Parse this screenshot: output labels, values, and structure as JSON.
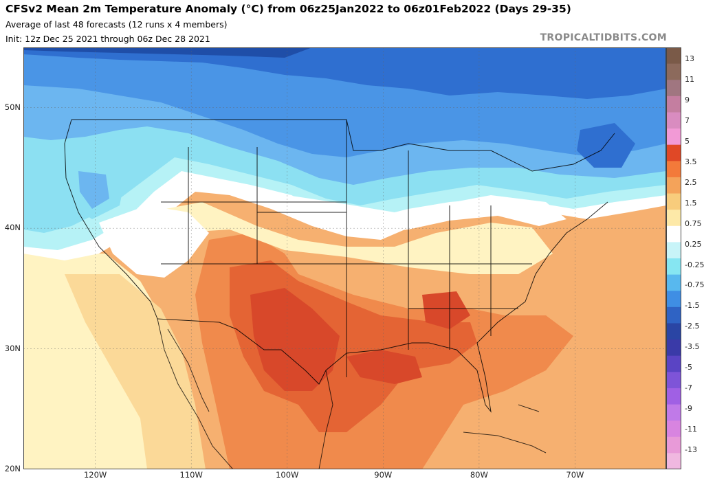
{
  "header": {
    "title": "CFSv2 Mean 2m Temperature Anomaly (°C) from 06z25Jan2022 to 06z01Feb2022 (Days 29-35)",
    "subtitle_1": "Average of last 48 forecasts (12 runs x 4 members)",
    "subtitle_2": "Init: 12z Dec 25 2021 through 06z Dec 28 2021",
    "brand": "TROPICALTIDBITS.COM"
  },
  "axes": {
    "latitudes": [
      {
        "value": 50,
        "label": "50N"
      },
      {
        "value": 40,
        "label": "40N"
      },
      {
        "value": 30,
        "label": "30N"
      },
      {
        "value": 20,
        "label": "20N"
      }
    ],
    "longitudes": [
      {
        "value": -120,
        "label": "120W"
      },
      {
        "value": -110,
        "label": "110W"
      },
      {
        "value": -100,
        "label": "100W"
      },
      {
        "value": -90,
        "label": "90W"
      },
      {
        "value": -80,
        "label": "80W"
      },
      {
        "value": -70,
        "label": "70W"
      }
    ]
  },
  "colorbar": {
    "labels": [
      "13",
      "11",
      "9",
      "7",
      "5",
      "3.5",
      "2.5",
      "1.5",
      "0.75",
      "0.25",
      "-0.25",
      "-0.75",
      "-1.5",
      "-2.5",
      "-3.5",
      "-5",
      "-7",
      "-9",
      "-11",
      "-13"
    ],
    "colors": [
      "#7a5a48",
      "#8c6a5c",
      "#a07680",
      "#c47ea0",
      "#d98cc0",
      "#f29ad6",
      "#e04826",
      "#f37a3a",
      "#f4a35a",
      "#f8cc7c",
      "#fde9a8",
      "#ffffff",
      "#c8f4f8",
      "#86e6f2",
      "#58b8ee",
      "#3f8ee4",
      "#2f63c4",
      "#2a45a4",
      "#3a3aa8",
      "#5a44c4",
      "#7e54d8",
      "#a060e4",
      "#c07ae8",
      "#d884e0",
      "#e89ad8",
      "#f0b8e0"
    ]
  },
  "anomaly_colors": {
    "cold_deep": "#1f4ea8",
    "cold_strong": "#2f6fd0",
    "cold_mid": "#4a95e6",
    "cold_light": "#6cb6f0",
    "cool": "#8ce0f2",
    "cool_faint": "#b6f2f6",
    "neutral": "#ffffff",
    "warm_faint": "#fff3c2",
    "warm_light": "#fbd998",
    "warm_mid": "#f6b070",
    "warm_strong": "#f08a4c",
    "warm_deep": "#e46434",
    "warm_max": "#d8482a"
  }
}
